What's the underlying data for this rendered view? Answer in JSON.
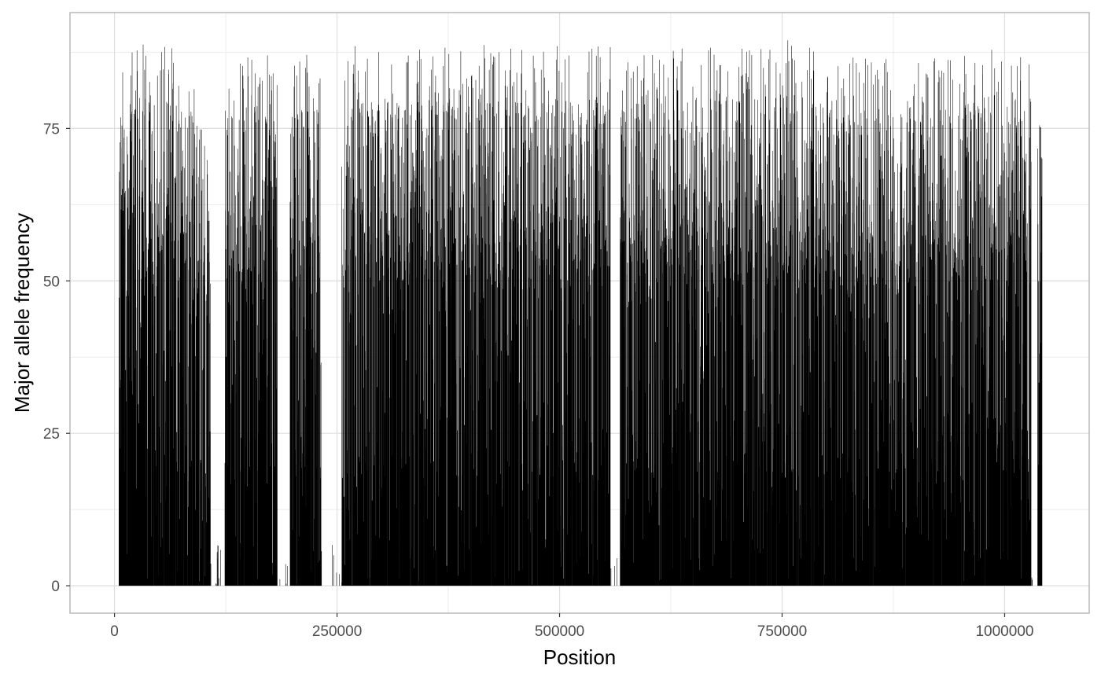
{
  "chart_data": {
    "type": "bar",
    "xlabel": "Position",
    "ylabel": "Major allele frequency",
    "xlim": [
      -50000,
      1095000
    ],
    "ylim": [
      -4.5,
      94
    ],
    "x_ticks": [
      0,
      250000,
      500000,
      750000,
      1000000
    ],
    "x_tick_labels": [
      "0",
      "250000",
      "500000",
      "750000",
      "1000000"
    ],
    "y_ticks": [
      0,
      25,
      50,
      75
    ],
    "y_tick_labels": [
      "0",
      "25",
      "50",
      "75"
    ],
    "grid": true,
    "legend": "none",
    "bar_color": "#000000",
    "series_note_positions_range": [
      5000,
      1042000
    ],
    "envelope": [
      {
        "x": 5000,
        "max": 88
      },
      {
        "x": 20000,
        "max": 89
      },
      {
        "x": 55000,
        "max": 89
      },
      {
        "x": 95000,
        "max": 87
      },
      {
        "x": 105000,
        "max": 78
      },
      {
        "x": 112000,
        "max": 7
      },
      {
        "x": 125000,
        "max": 85
      },
      {
        "x": 165000,
        "max": 89
      },
      {
        "x": 185000,
        "max": 88
      },
      {
        "x": 200000,
        "max": 87
      },
      {
        "x": 225000,
        "max": 88
      },
      {
        "x": 240000,
        "max": 85
      },
      {
        "x": 260000,
        "max": 89
      },
      {
        "x": 320000,
        "max": 88
      },
      {
        "x": 400000,
        "max": 89
      },
      {
        "x": 450000,
        "max": 88
      },
      {
        "x": 540000,
        "max": 89
      },
      {
        "x": 600000,
        "max": 88
      },
      {
        "x": 700000,
        "max": 89
      },
      {
        "x": 770000,
        "max": 90
      },
      {
        "x": 810000,
        "max": 87
      },
      {
        "x": 900000,
        "max": 86
      },
      {
        "x": 1015000,
        "max": 89
      },
      {
        "x": 1040000,
        "max": 88
      }
    ],
    "gaps": [
      [
        108000,
        124000
      ],
      [
        183000,
        197000
      ],
      [
        232000,
        255000
      ],
      [
        557000,
        568000
      ],
      [
        1030000,
        1037000
      ]
    ]
  }
}
